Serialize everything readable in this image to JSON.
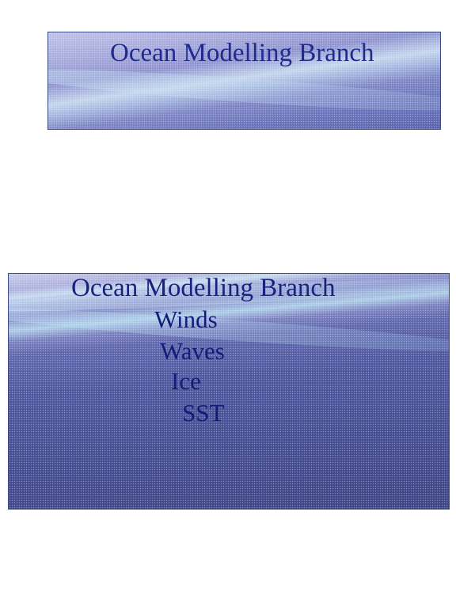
{
  "slides": {
    "top": {
      "title": "Ocean Modelling Branch"
    },
    "bottom": {
      "title": "Ocean Modelling Branch",
      "items": [
        "Winds",
        "Waves",
        "Ice",
        "SST"
      ]
    }
  },
  "colors": {
    "text": "#1f2a8c",
    "banner_light": "#bfc3e8",
    "banner_dark": "#3d4484"
  }
}
